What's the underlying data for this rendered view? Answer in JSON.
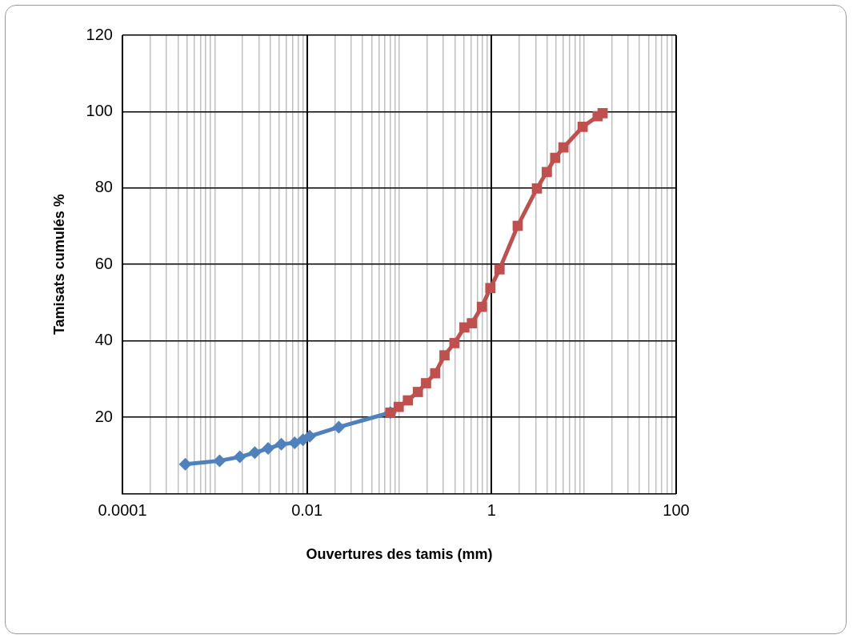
{
  "chart_data": {
    "type": "line",
    "xlabel": "Ouvertures des tamis (mm)",
    "ylabel": "Tamisats cumulés %",
    "log": "x",
    "grid": true,
    "legend": false,
    "line_style": "solid",
    "xlim": [
      0.0001,
      100
    ],
    "xticks": [
      {
        "value": 0.0001,
        "label": "0.0001"
      },
      {
        "value": 0.0002,
        "label": null
      },
      {
        "value": 0.0003,
        "label": null
      },
      {
        "value": 0.0004,
        "label": null
      },
      {
        "value": 0.0005,
        "label": null
      },
      {
        "value": 0.0006,
        "label": null
      },
      {
        "value": 0.0007,
        "label": null
      },
      {
        "value": 0.0008,
        "label": null
      },
      {
        "value": 0.0009,
        "label": null
      },
      {
        "value": 0.001,
        "label": null
      },
      {
        "value": 0.002,
        "label": null
      },
      {
        "value": 0.003,
        "label": null
      },
      {
        "value": 0.004,
        "label": null
      },
      {
        "value": 0.005,
        "label": null
      },
      {
        "value": 0.006,
        "label": null
      },
      {
        "value": 0.007,
        "label": null
      },
      {
        "value": 0.008,
        "label": null
      },
      {
        "value": 0.009,
        "label": null
      },
      {
        "value": 0.01,
        "label": "0.01"
      },
      {
        "value": 0.02,
        "label": null
      },
      {
        "value": 0.03,
        "label": null
      },
      {
        "value": 0.04,
        "label": null
      },
      {
        "value": 0.05,
        "label": null
      },
      {
        "value": 0.06,
        "label": null
      },
      {
        "value": 0.07,
        "label": null
      },
      {
        "value": 0.08,
        "label": null
      },
      {
        "value": 0.09,
        "label": null
      },
      {
        "value": 0.1,
        "label": null
      },
      {
        "value": 0.2,
        "label": null
      },
      {
        "value": 0.3,
        "label": null
      },
      {
        "value": 0.4,
        "label": null
      },
      {
        "value": 0.5,
        "label": null
      },
      {
        "value": 0.6,
        "label": null
      },
      {
        "value": 0.7,
        "label": null
      },
      {
        "value": 0.8,
        "label": null
      },
      {
        "value": 0.9,
        "label": null
      },
      {
        "value": 1,
        "label": "1"
      },
      {
        "value": 2,
        "label": null
      },
      {
        "value": 3,
        "label": null
      },
      {
        "value": 4,
        "label": null
      },
      {
        "value": 5,
        "label": null
      },
      {
        "value": 6,
        "label": null
      },
      {
        "value": 7,
        "label": null
      },
      {
        "value": 8,
        "label": null
      },
      {
        "value": 9,
        "label": null
      },
      {
        "value": 10,
        "label": null
      },
      {
        "value": 20,
        "label": null
      },
      {
        "value": 30,
        "label": null
      },
      {
        "value": 40,
        "label": null
      },
      {
        "value": 50,
        "label": null
      },
      {
        "value": 60,
        "label": null
      },
      {
        "value": 70,
        "label": null
      },
      {
        "value": 80,
        "label": null
      },
      {
        "value": 90,
        "label": null
      },
      {
        "value": 100,
        "label": "100"
      }
    ],
    "ylim": [
      0,
      120
    ],
    "yticks": [
      {
        "value": 0,
        "label": null
      },
      20,
      40,
      60,
      80,
      100,
      120
    ],
    "series": [
      {
        "color": "#4f81bd",
        "marker": "diamond",
        "x": [
          0.00048,
          0.00113,
          0.00187,
          0.00272,
          0.00379,
          0.00527,
          0.00735,
          0.00905,
          0.0107,
          0.0221,
          0.08
        ],
        "values": [
          7.7,
          8.6,
          9.6,
          10.7,
          11.8,
          12.9,
          13.3,
          14.1,
          15,
          17.4,
          21.2
        ]
      },
      {
        "color": "#c0504d",
        "marker": "square",
        "x": [
          0.08,
          0.0986,
          0.124,
          0.159,
          0.195,
          0.245,
          0.309,
          0.396,
          0.508,
          0.612,
          0.785,
          0.97,
          1.22,
          1.92,
          3.1,
          3.97,
          4.89,
          6.01,
          9.7,
          14.1,
          15.97
        ],
        "values": [
          21.2,
          22.7,
          24.4,
          26.6,
          28.9,
          31.5,
          36.2,
          39.4,
          43.5,
          44.6,
          48.9,
          53.8,
          58.7,
          70.1,
          79.9,
          84.2,
          87.9,
          90.6,
          96,
          98.8,
          99.6
        ]
      }
    ]
  }
}
